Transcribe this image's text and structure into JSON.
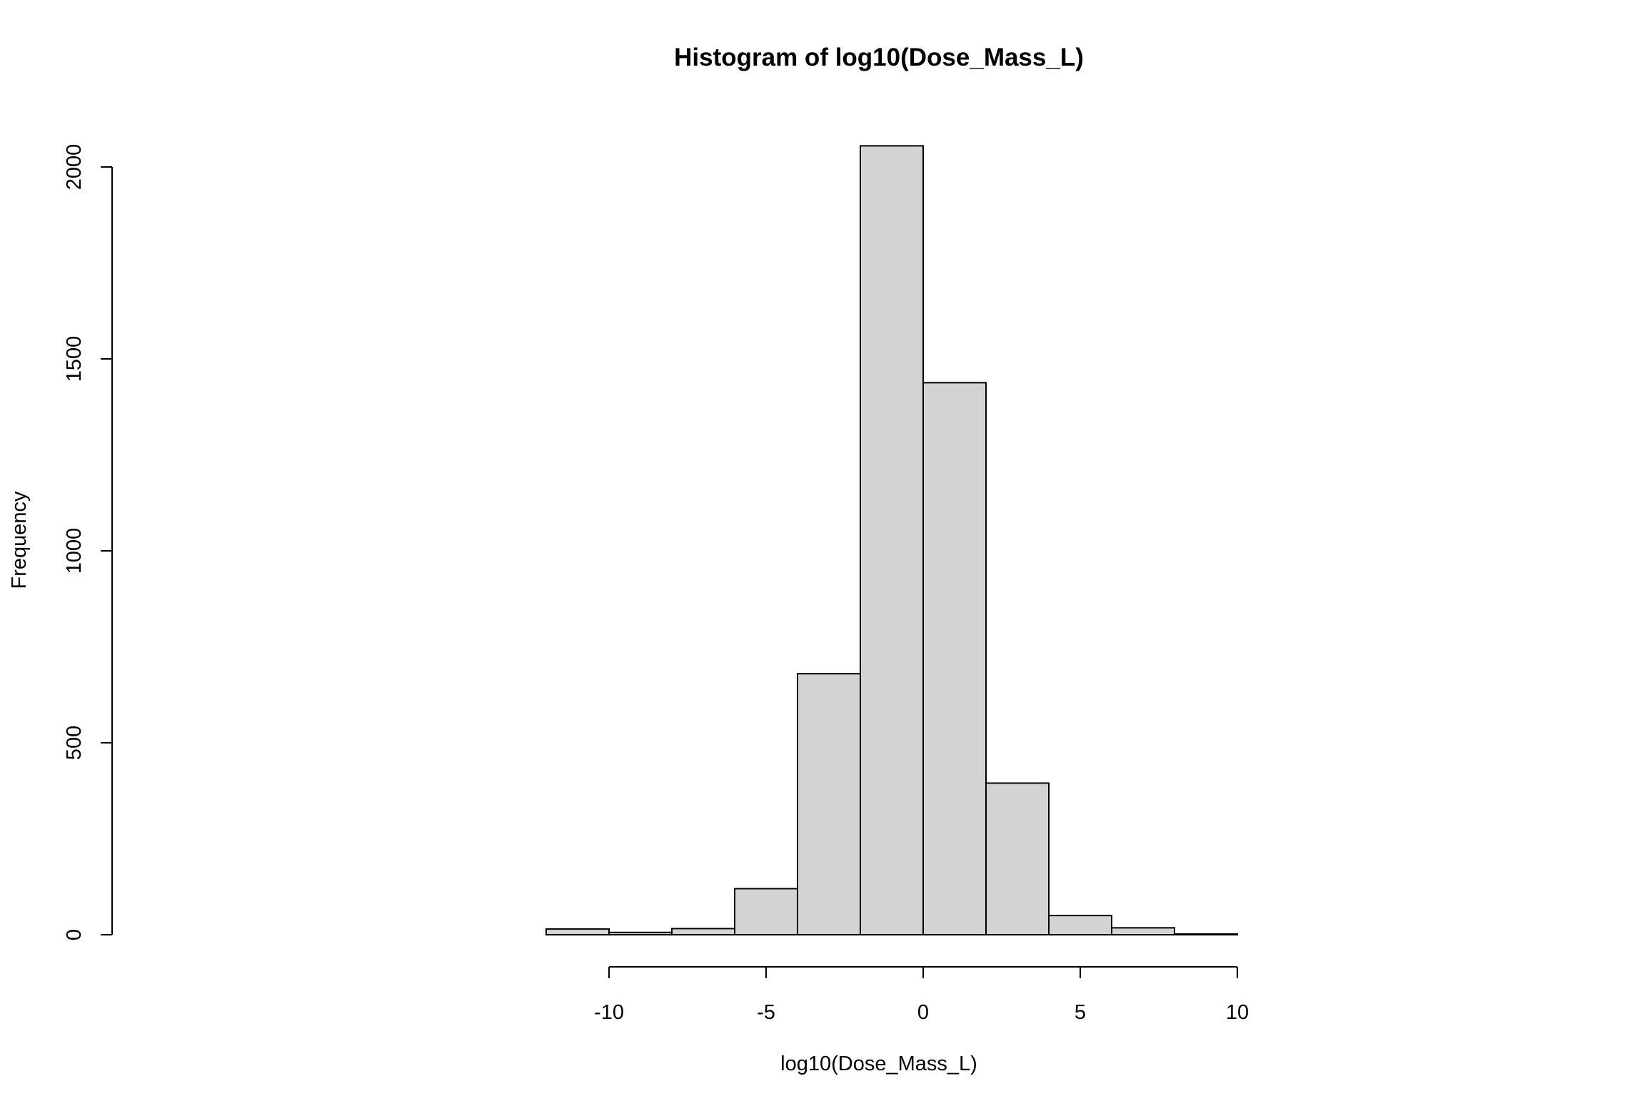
{
  "chart_data": {
    "type": "bar",
    "title": "Histogram of log10(Dose_Mass_L)",
    "xlabel": "log10(Dose_Mass_L)",
    "ylabel": "Frequency",
    "bins": [
      {
        "x0": -12,
        "x1": -10,
        "count": 15
      },
      {
        "x0": -10,
        "x1": -8,
        "count": 6
      },
      {
        "x0": -8,
        "x1": -6,
        "count": 16
      },
      {
        "x0": -6,
        "x1": -4,
        "count": 120
      },
      {
        "x0": -4,
        "x1": -2,
        "count": 680
      },
      {
        "x0": -2,
        "x1": 0,
        "count": 2055
      },
      {
        "x0": 0,
        "x1": 2,
        "count": 1438
      },
      {
        "x0": 2,
        "x1": 4,
        "count": 395
      },
      {
        "x0": 4,
        "x1": 6,
        "count": 50
      },
      {
        "x0": 6,
        "x1": 8,
        "count": 18
      },
      {
        "x0": 8,
        "x1": 10,
        "count": 2
      }
    ],
    "x_ticks": [
      "-10",
      "-5",
      "0",
      "5",
      "10"
    ],
    "x_tick_values": [
      -10,
      -5,
      0,
      5,
      10
    ],
    "y_ticks": [
      "0",
      "500",
      "1000",
      "1500",
      "2000"
    ],
    "y_tick_values": [
      0,
      500,
      1000,
      1500,
      2000
    ],
    "xlim": [
      -12,
      10
    ],
    "ylim": [
      0,
      2000
    ],
    "bar_fill": "#d3d3d3",
    "bar_stroke": "#000000",
    "grid": false,
    "legend": "none"
  }
}
